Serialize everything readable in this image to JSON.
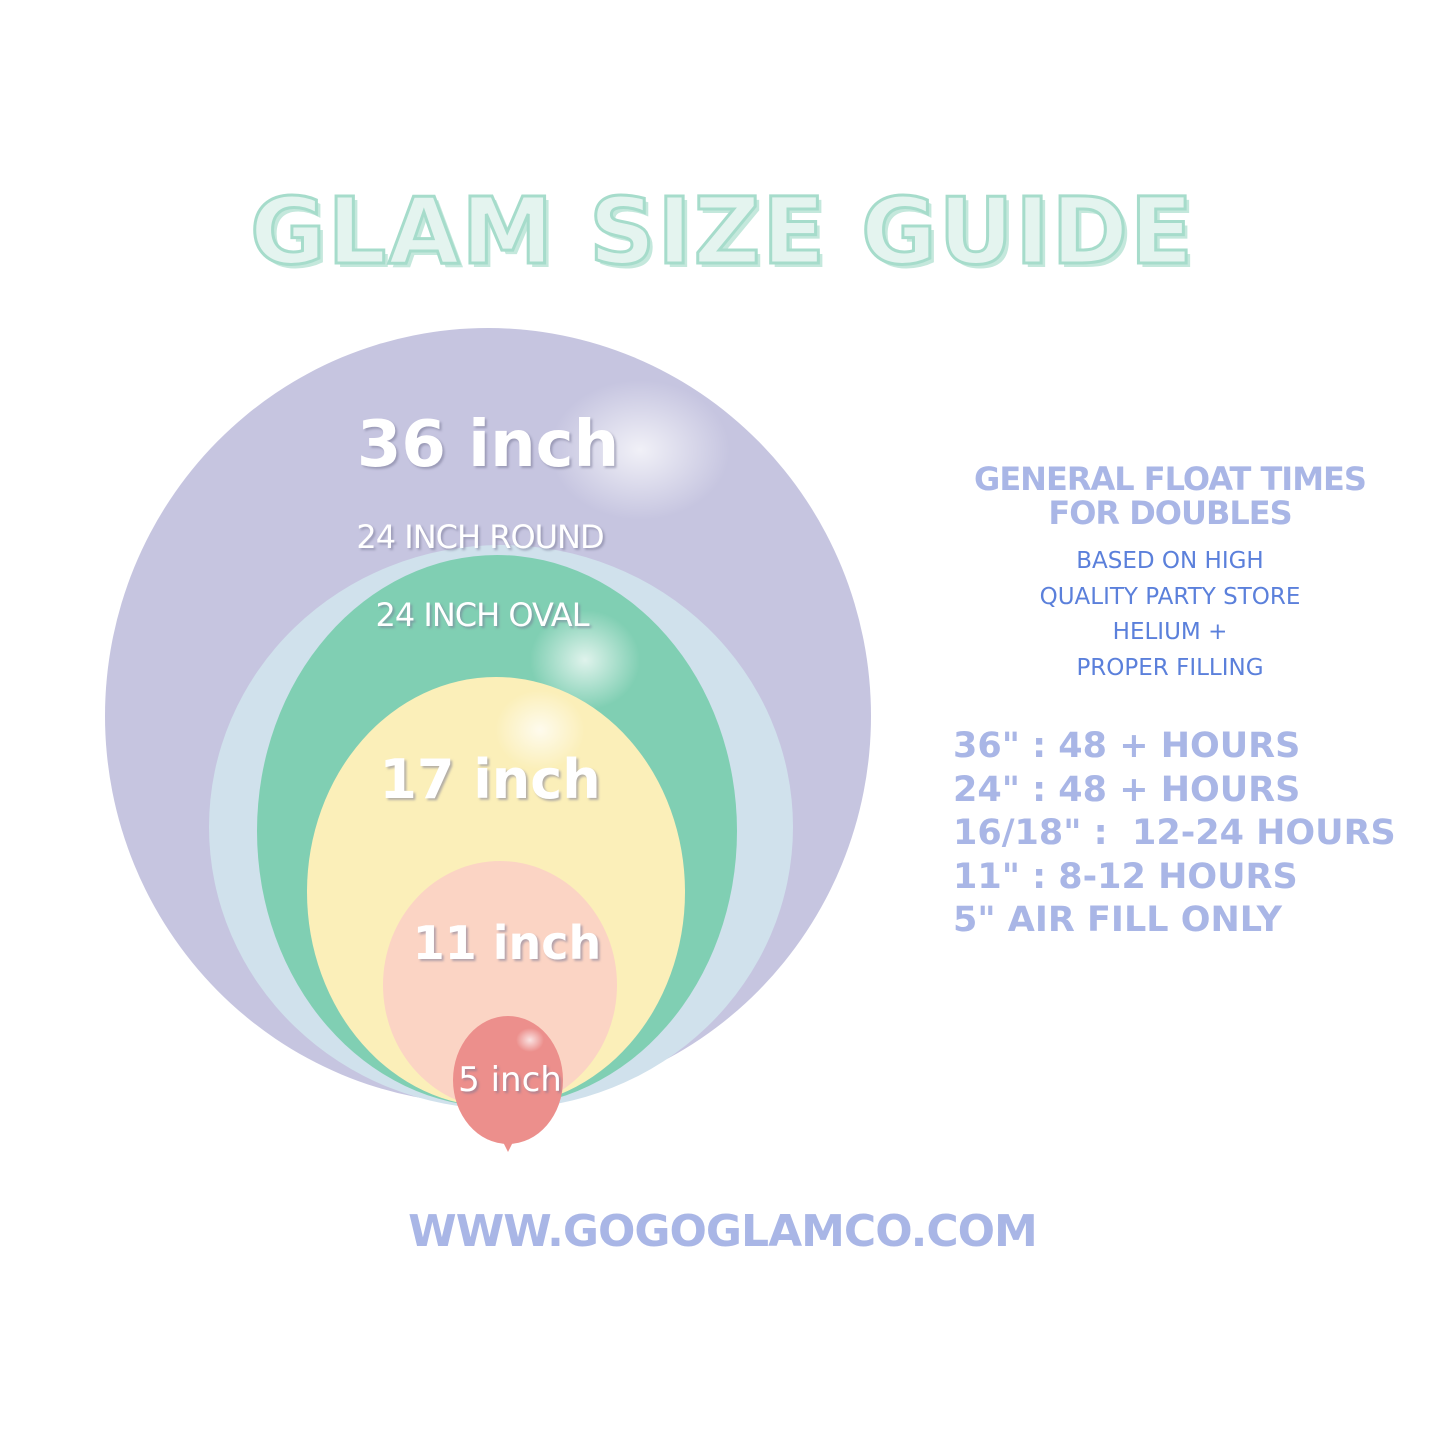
{
  "title": "GLAM SIZE GUIDE",
  "balloons": [
    {
      "label": "36 inch",
      "color": "#c6c5e0"
    },
    {
      "label": "24 INCH ROUND",
      "color": "#d0e1ec"
    },
    {
      "label": "24 INCH OVAL",
      "color": "#80cfb3"
    },
    {
      "label": "17 inch",
      "color": "#fbefb9"
    },
    {
      "label": "11 inch",
      "color": "#fbd4c4"
    },
    {
      "label": "5 inch",
      "color": "#ec8f8c"
    }
  ],
  "float_times": {
    "heading_line1": "GENERAL FLOAT TIMES",
    "heading_line2": "FOR DOUBLES",
    "note": [
      "BASED ON HIGH",
      "QUALITY PARTY STORE",
      "HELIUM +",
      "PROPER FILLING"
    ],
    "rows": [
      "36\" : 48 + HOURS",
      "24\" : 48 + HOURS",
      "16/18\" :  12-24 HOURS",
      "11\" : 8-12 HOURS",
      "5\" AIR FILL ONLY"
    ]
  },
  "website": "WWW.GOGOGLAMCO.COM",
  "colors": {
    "heading": "#a9b6e6",
    "note": "#5b80db",
    "title_fill": "#e4f4ef",
    "title_stroke": "#a6dccb"
  }
}
